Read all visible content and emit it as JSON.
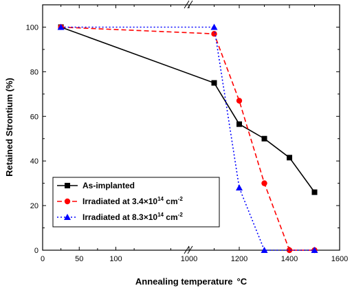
{
  "chart_data": {
    "type": "line",
    "xlabel": "Annealing temperature",
    "xlabel_unit": "°C",
    "ylabel": "Retained Strontium  (%)",
    "x_axis_broken": true,
    "x_segments": [
      {
        "range": [
          0,
          200
        ],
        "ticks": [
          0,
          50,
          100
        ]
      },
      {
        "range": [
          1000,
          1600
        ],
        "ticks": [
          1000,
          1200,
          1400,
          1600
        ]
      }
    ],
    "x_tick_labels": [
      "0",
      "50",
      "100",
      "1000",
      "1200",
      "1400",
      "1600"
    ],
    "ylim": [
      0,
      110
    ],
    "y_ticks": [
      0,
      20,
      40,
      60,
      80,
      100
    ],
    "y_tick_labels": [
      "0",
      "20",
      "40",
      "60",
      "80",
      "100"
    ],
    "grid": false,
    "legend_position": "bottom-left",
    "series": [
      {
        "name": "As-implanted",
        "color": "#000000",
        "marker": "square",
        "line": "solid",
        "x": [
          25,
          1100,
          1200,
          1300,
          1400,
          1500
        ],
        "y": [
          100,
          75,
          56.5,
          50,
          41.5,
          26
        ]
      },
      {
        "name": "Irradiated at 3.4×10",
        "name_exp": "14",
        "name_unit": " cm",
        "name_unit_exp": "-2",
        "color": "#ff0000",
        "marker": "circle",
        "line": "dashed",
        "x": [
          25,
          1100,
          1200,
          1300,
          1400,
          1500
        ],
        "y": [
          100,
          97,
          67,
          30,
          0,
          0
        ]
      },
      {
        "name": "Irradiated at 8.3×10",
        "name_exp": "14",
        "name_unit": " cm",
        "name_unit_exp": "-2",
        "color": "#0000ff",
        "marker": "triangle",
        "line": "dotted",
        "x": [
          25,
          1100,
          1200,
          1300,
          1500
        ],
        "y": [
          100,
          100,
          28,
          0,
          0
        ]
      }
    ]
  }
}
